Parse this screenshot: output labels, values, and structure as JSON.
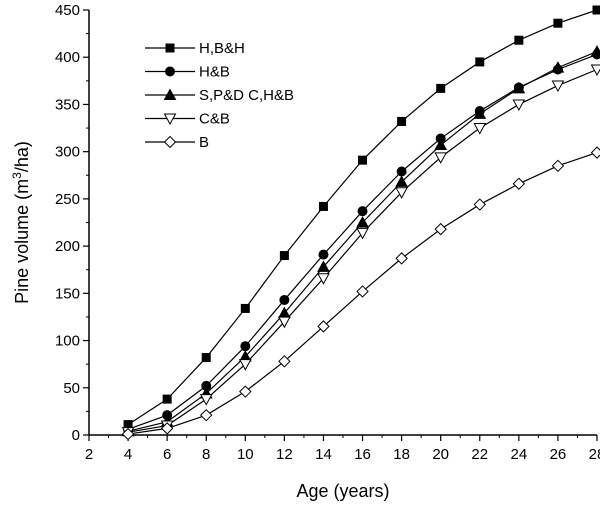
{
  "chart_data": {
    "type": "line",
    "xlabel": "Age (years)",
    "ylabel": {
      "prefix": "Pine volume (m",
      "sup": "3",
      "suffix": "/ha)"
    },
    "xlim": [
      2,
      28
    ],
    "ylim": [
      0,
      450
    ],
    "xticks": [
      2,
      4,
      6,
      8,
      10,
      12,
      14,
      16,
      18,
      20,
      22,
      24,
      26,
      28
    ],
    "yticks": [
      0,
      50,
      100,
      150,
      200,
      250,
      300,
      350,
      400,
      450
    ],
    "x": [
      4,
      6,
      8,
      10,
      12,
      14,
      16,
      18,
      20,
      22,
      24,
      26,
      28
    ],
    "legend_position": "top-left",
    "grid": false,
    "series": [
      {
        "name": "H,B&H",
        "marker": "square",
        "fill": "#000000",
        "values": [
          11,
          38,
          82,
          134,
          190,
          242,
          291,
          332,
          367,
          395,
          418,
          436,
          450
        ]
      },
      {
        "name": "H&B",
        "marker": "circle",
        "fill": "#000000",
        "values": [
          6,
          21,
          52,
          94,
          143,
          191,
          237,
          279,
          314,
          343,
          368,
          387,
          403
        ]
      },
      {
        "name": "S,P&D C,H&B",
        "marker": "triangle-up",
        "fill": "#000000",
        "values": [
          4,
          14,
          44,
          83,
          129,
          178,
          225,
          268,
          307,
          340,
          367,
          389,
          406
        ]
      },
      {
        "name": "C&B",
        "marker": "triangle-down",
        "fill": "#ffffff",
        "values": [
          3,
          10,
          38,
          75,
          120,
          166,
          214,
          257,
          294,
          325,
          350,
          370,
          387
        ]
      },
      {
        "name": "B",
        "marker": "diamond",
        "fill": "#ffffff",
        "values": [
          1,
          7,
          21,
          46,
          78,
          115,
          152,
          187,
          218,
          244,
          266,
          285,
          299
        ]
      }
    ]
  }
}
